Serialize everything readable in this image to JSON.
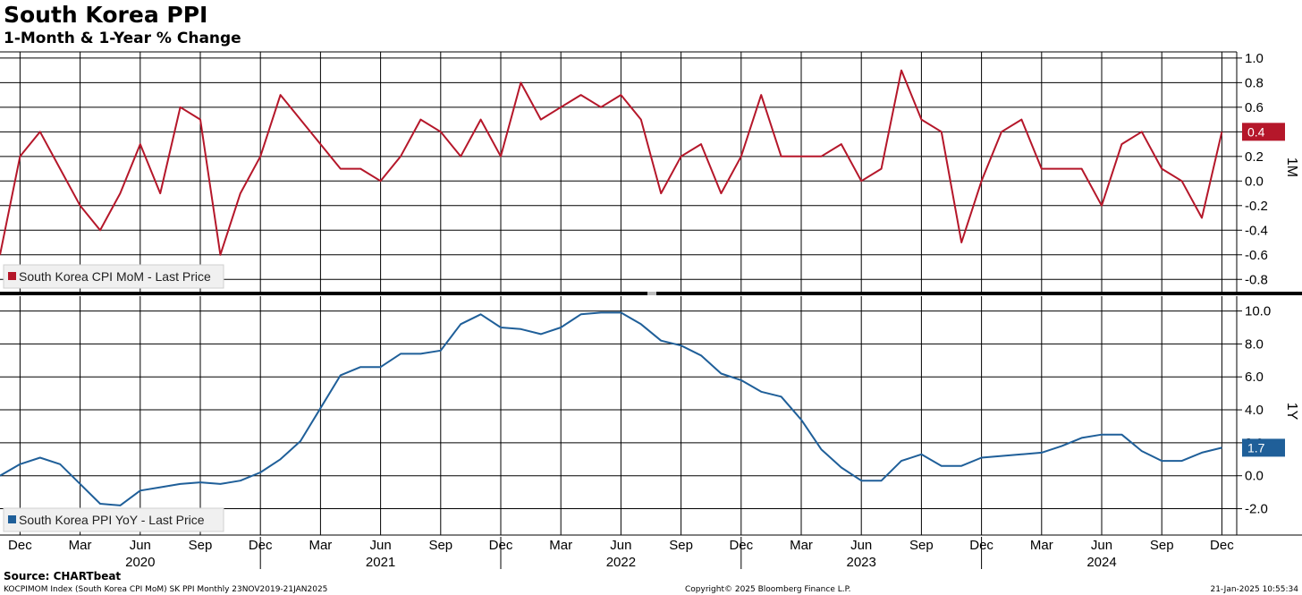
{
  "title": "South Korea PPI",
  "subtitle": "1-Month & 1-Year % Change",
  "source": "Source: CHARTbeat",
  "footer": {
    "left": "KOCPIMOM Index (South Korea CPI MoM) SK PPI  Monthly 23NOV2019-21JAN2025",
    "center": "Copyright© 2025 Bloomberg Finance L.P.",
    "right": "21-Jan-2025 10:55:34"
  },
  "colors": {
    "mom": "#b5172a",
    "yoy": "#1f5f99",
    "grid": "#000000"
  },
  "chart_data": [
    {
      "type": "line",
      "panel": "top",
      "side_label": "1M",
      "legend": "South Korea CPI MoM - Last Price",
      "last_value_label": "0.4",
      "ylim": [
        -0.9,
        1.05
      ],
      "yticks": [
        1.0,
        0.8,
        0.6,
        0.4,
        0.2,
        0.0,
        -0.2,
        -0.4,
        -0.6,
        -0.8
      ],
      "ytick_labels": [
        "1.0",
        "0.8",
        "0.6",
        "0.4",
        "0.2",
        "0.0",
        "-0.2",
        "-0.4",
        "-0.6",
        "-0.8"
      ],
      "x": [
        "2019-11",
        "2019-12",
        "2020-01",
        "2020-02",
        "2020-03",
        "2020-04",
        "2020-05",
        "2020-06",
        "2020-07",
        "2020-08",
        "2020-09",
        "2020-10",
        "2020-11",
        "2020-12",
        "2021-01",
        "2021-02",
        "2021-03",
        "2021-04",
        "2021-05",
        "2021-06",
        "2021-07",
        "2021-08",
        "2021-09",
        "2021-10",
        "2021-11",
        "2021-12",
        "2022-01",
        "2022-02",
        "2022-03",
        "2022-04",
        "2022-05",
        "2022-06",
        "2022-07",
        "2022-08",
        "2022-09",
        "2022-10",
        "2022-11",
        "2022-12",
        "2023-01",
        "2023-02",
        "2023-03",
        "2023-04",
        "2023-05",
        "2023-06",
        "2023-07",
        "2023-08",
        "2023-09",
        "2023-10",
        "2023-11",
        "2023-12",
        "2024-01",
        "2024-02",
        "2024-03",
        "2024-04",
        "2024-05",
        "2024-06",
        "2024-07",
        "2024-08",
        "2024-09",
        "2024-10",
        "2024-11",
        "2024-12"
      ],
      "values": [
        -0.6,
        0.2,
        0.4,
        0.1,
        -0.2,
        -0.4,
        -0.1,
        0.3,
        -0.1,
        0.6,
        0.5,
        -0.6,
        -0.1,
        0.2,
        0.7,
        0.5,
        0.3,
        0.1,
        0.1,
        0.0,
        0.2,
        0.5,
        0.4,
        0.2,
        0.5,
        0.2,
        0.8,
        0.5,
        0.6,
        0.7,
        0.6,
        0.7,
        0.5,
        -0.1,
        0.2,
        0.3,
        -0.1,
        0.2,
        0.7,
        0.2,
        0.2,
        0.2,
        0.3,
        0.0,
        0.1,
        0.9,
        0.5,
        0.4,
        -0.5,
        0.0,
        0.4,
        0.5,
        0.1,
        0.1,
        0.1,
        -0.2,
        0.3,
        0.4,
        0.1,
        0.0,
        -0.3,
        0.4
      ]
    },
    {
      "type": "line",
      "panel": "bottom",
      "side_label": "1Y",
      "legend": "South Korea PPI YoY - Last Price",
      "last_value_label": "1.7",
      "ylim": [
        -3.6,
        10.9
      ],
      "yticks": [
        10.0,
        8.0,
        6.0,
        4.0,
        2.0,
        0.0,
        -2.0
      ],
      "ytick_labels": [
        "10.0",
        "8.0",
        "6.0",
        "4.0",
        "2.0",
        "0.0",
        "-2.0"
      ],
      "x": [
        "2019-11",
        "2019-12",
        "2020-01",
        "2020-02",
        "2020-03",
        "2020-04",
        "2020-05",
        "2020-06",
        "2020-07",
        "2020-08",
        "2020-09",
        "2020-10",
        "2020-11",
        "2020-12",
        "2021-01",
        "2021-02",
        "2021-03",
        "2021-04",
        "2021-05",
        "2021-06",
        "2021-07",
        "2021-08",
        "2021-09",
        "2021-10",
        "2021-11",
        "2021-12",
        "2022-01",
        "2022-02",
        "2022-03",
        "2022-04",
        "2022-05",
        "2022-06",
        "2022-07",
        "2022-08",
        "2022-09",
        "2022-10",
        "2022-11",
        "2022-12",
        "2023-01",
        "2023-02",
        "2023-03",
        "2023-04",
        "2023-05",
        "2023-06",
        "2023-07",
        "2023-08",
        "2023-09",
        "2023-10",
        "2023-11",
        "2023-12",
        "2024-01",
        "2024-02",
        "2024-03",
        "2024-04",
        "2024-05",
        "2024-06",
        "2024-07",
        "2024-08",
        "2024-09",
        "2024-10",
        "2024-11",
        "2024-12"
      ],
      "values": [
        0.0,
        0.7,
        1.1,
        0.7,
        -0.5,
        -1.7,
        -1.8,
        -0.9,
        -0.7,
        -0.5,
        -0.4,
        -0.5,
        -0.3,
        0.2,
        1.0,
        2.1,
        4.1,
        6.1,
        6.6,
        6.6,
        7.4,
        7.4,
        7.6,
        9.2,
        9.8,
        9.0,
        8.9,
        8.6,
        9.0,
        9.8,
        9.9,
        9.9,
        9.2,
        8.2,
        7.9,
        7.3,
        6.2,
        5.8,
        5.1,
        4.8,
        3.4,
        1.6,
        0.5,
        -0.3,
        -0.3,
        0.9,
        1.3,
        0.6,
        0.6,
        1.1,
        1.2,
        1.3,
        1.4,
        1.8,
        2.3,
        2.5,
        2.5,
        1.5,
        0.9,
        0.9,
        1.4,
        1.7
      ]
    }
  ],
  "x_axis": {
    "month_ticks": [
      {
        "label": "Dec",
        "date": "2019-12"
      },
      {
        "label": "Mar",
        "date": "2020-03"
      },
      {
        "label": "Jun",
        "date": "2020-06"
      },
      {
        "label": "Sep",
        "date": "2020-09"
      },
      {
        "label": "Dec",
        "date": "2020-12"
      },
      {
        "label": "Mar",
        "date": "2021-03"
      },
      {
        "label": "Jun",
        "date": "2021-06"
      },
      {
        "label": "Sep",
        "date": "2021-09"
      },
      {
        "label": "Dec",
        "date": "2021-12"
      },
      {
        "label": "Mar",
        "date": "2022-03"
      },
      {
        "label": "Jun",
        "date": "2022-06"
      },
      {
        "label": "Sep",
        "date": "2022-09"
      },
      {
        "label": "Dec",
        "date": "2022-12"
      },
      {
        "label": "Mar",
        "date": "2023-03"
      },
      {
        "label": "Jun",
        "date": "2023-06"
      },
      {
        "label": "Sep",
        "date": "2023-09"
      },
      {
        "label": "Dec",
        "date": "2023-12"
      },
      {
        "label": "Mar",
        "date": "2024-03"
      },
      {
        "label": "Jun",
        "date": "2024-06"
      },
      {
        "label": "Sep",
        "date": "2024-09"
      },
      {
        "label": "Dec",
        "date": "2024-12"
      }
    ],
    "year_labels": [
      {
        "label": "2020",
        "date": "2020-06"
      },
      {
        "label": "2021",
        "date": "2021-06"
      },
      {
        "label": "2022",
        "date": "2022-06"
      },
      {
        "label": "2023",
        "date": "2023-06"
      },
      {
        "label": "2024",
        "date": "2024-06"
      }
    ],
    "year_separators": [
      "2020-12",
      "2021-12",
      "2022-12",
      "2023-12"
    ]
  }
}
